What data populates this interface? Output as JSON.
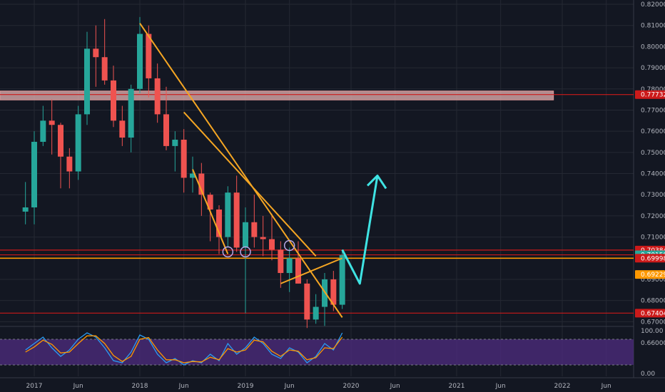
{
  "theme": {
    "background": "#131722",
    "grid": "#242833",
    "axis_text": "#b2b5be",
    "candle_up": "#26a69a",
    "candle_down": "#ef5350",
    "support_red": "#cc1a1a",
    "support_orange": "#ff9800",
    "trendline_orange": "#f5a623",
    "projection_cyan": "#3fe3e3",
    "zone_fill": "#e8b4b4",
    "ellipse": "#b7a7e6",
    "osc_band": "#4b2b7a",
    "osc_line_blue": "#2a9df4",
    "osc_line_orange": "#ff9800"
  },
  "chart_data": {
    "type": "candlestick",
    "ylim": [
      0.66,
      0.82
    ],
    "y_ticks": [
      "0.82000",
      "0.81000",
      "0.80000",
      "0.79000",
      "0.78000",
      "0.77000",
      "0.76000",
      "0.75000",
      "0.74000",
      "0.73000",
      "0.72000",
      "0.71000",
      "0.70000",
      "0.69000",
      "0.68000",
      "0.67000",
      "0.66000"
    ],
    "x_ticks": [
      "2017",
      "Jun",
      "2018",
      "Jun",
      "2019",
      "Jun",
      "2020",
      "Jun",
      "2021",
      "Jun",
      "2022",
      "Jun"
    ],
    "x_tick_dates": [
      "2017-01",
      "2017-06",
      "2018-01",
      "2018-06",
      "2019-01",
      "2019-06",
      "2020-01",
      "2020-06",
      "2021-01",
      "2021-06",
      "2022-01",
      "2022-06"
    ],
    "candles": [
      {
        "d": "2016-12",
        "o": 0.722,
        "h": 0.736,
        "l": 0.716,
        "c": 0.724
      },
      {
        "d": "2017-01",
        "o": 0.724,
        "h": 0.76,
        "l": 0.716,
        "c": 0.755
      },
      {
        "d": "2017-02",
        "o": 0.755,
        "h": 0.772,
        "l": 0.753,
        "c": 0.765
      },
      {
        "d": "2017-03",
        "o": 0.765,
        "h": 0.775,
        "l": 0.749,
        "c": 0.763
      },
      {
        "d": "2017-04",
        "o": 0.763,
        "h": 0.764,
        "l": 0.733,
        "c": 0.748
      },
      {
        "d": "2017-05",
        "o": 0.748,
        "h": 0.752,
        "l": 0.733,
        "c": 0.741
      },
      {
        "d": "2017-06",
        "o": 0.741,
        "h": 0.772,
        "l": 0.737,
        "c": 0.768
      },
      {
        "d": "2017-07",
        "o": 0.768,
        "h": 0.807,
        "l": 0.763,
        "c": 0.799
      },
      {
        "d": "2017-08",
        "o": 0.799,
        "h": 0.81,
        "l": 0.781,
        "c": 0.795
      },
      {
        "d": "2017-09",
        "o": 0.795,
        "h": 0.813,
        "l": 0.782,
        "c": 0.784
      },
      {
        "d": "2017-10",
        "o": 0.784,
        "h": 0.791,
        "l": 0.762,
        "c": 0.765
      },
      {
        "d": "2017-11",
        "o": 0.765,
        "h": 0.772,
        "l": 0.753,
        "c": 0.757
      },
      {
        "d": "2017-12",
        "o": 0.757,
        "h": 0.782,
        "l": 0.75,
        "c": 0.78
      },
      {
        "d": "2018-01",
        "o": 0.78,
        "h": 0.814,
        "l": 0.778,
        "c": 0.806
      },
      {
        "d": "2018-02",
        "o": 0.806,
        "h": 0.81,
        "l": 0.776,
        "c": 0.785
      },
      {
        "d": "2018-03",
        "o": 0.785,
        "h": 0.792,
        "l": 0.764,
        "c": 0.768
      },
      {
        "d": "2018-04",
        "o": 0.768,
        "h": 0.781,
        "l": 0.751,
        "c": 0.753
      },
      {
        "d": "2018-05",
        "o": 0.753,
        "h": 0.76,
        "l": 0.741,
        "c": 0.756
      },
      {
        "d": "2018-06",
        "o": 0.756,
        "h": 0.761,
        "l": 0.731,
        "c": 0.738
      },
      {
        "d": "2018-07",
        "o": 0.738,
        "h": 0.748,
        "l": 0.731,
        "c": 0.74
      },
      {
        "d": "2018-08",
        "o": 0.74,
        "h": 0.745,
        "l": 0.72,
        "c": 0.73
      },
      {
        "d": "2018-09",
        "o": 0.73,
        "h": 0.731,
        "l": 0.708,
        "c": 0.723
      },
      {
        "d": "2018-10",
        "o": 0.723,
        "h": 0.725,
        "l": 0.702,
        "c": 0.71
      },
      {
        "d": "2018-11",
        "o": 0.71,
        "h": 0.734,
        "l": 0.705,
        "c": 0.731
      },
      {
        "d": "2018-12",
        "o": 0.731,
        "h": 0.739,
        "l": 0.703,
        "c": 0.705
      },
      {
        "d": "2019-01",
        "o": 0.705,
        "h": 0.724,
        "l": 0.674,
        "c": 0.717
      },
      {
        "d": "2019-02",
        "o": 0.717,
        "h": 0.73,
        "l": 0.705,
        "c": 0.71
      },
      {
        "d": "2019-03",
        "o": 0.71,
        "h": 0.72,
        "l": 0.701,
        "c": 0.709
      },
      {
        "d": "2019-04",
        "o": 0.709,
        "h": 0.721,
        "l": 0.699,
        "c": 0.704
      },
      {
        "d": "2019-05",
        "o": 0.704,
        "h": 0.708,
        "l": 0.686,
        "c": 0.693
      },
      {
        "d": "2019-06",
        "o": 0.693,
        "h": 0.705,
        "l": 0.684,
        "c": 0.7
      },
      {
        "d": "2019-07",
        "o": 0.7,
        "h": 0.708,
        "l": 0.688,
        "c": 0.688
      },
      {
        "d": "2019-08",
        "o": 0.688,
        "h": 0.69,
        "l": 0.667,
        "c": 0.671
      },
      {
        "d": "2019-09",
        "o": 0.671,
        "h": 0.683,
        "l": 0.669,
        "c": 0.677
      },
      {
        "d": "2019-10",
        "o": 0.677,
        "h": 0.693,
        "l": 0.668,
        "c": 0.69
      },
      {
        "d": "2019-11",
        "o": 0.69,
        "h": 0.694,
        "l": 0.675,
        "c": 0.678
      },
      {
        "d": "2019-12",
        "o": 0.678,
        "h": 0.704,
        "l": 0.676,
        "c": 0.7015
      }
    ],
    "horizontal_levels": [
      {
        "price": 0.70384,
        "label": "0.70384",
        "color": "#cc1a1a",
        "badge": "#cc1a1a"
      },
      {
        "price": 0.70158,
        "label": "0.70158",
        "color": "#cc1a1a",
        "badge": "#26a69a"
      },
      {
        "price": 0.69998,
        "label": "0.69998",
        "color": "#ff9800",
        "badge": "#cc1a1a"
      },
      {
        "price": 0.69229,
        "label": "0.69229",
        "color": null,
        "badge": "#ff9800"
      },
      {
        "price": 0.67404,
        "label": "0.67404",
        "color": "#cc1a1a",
        "badge": "#cc1a1a"
      },
      {
        "price": 0.77732,
        "label": "0.77732",
        "color": "#cc1a1a",
        "badge": "#cc1a1a"
      }
    ],
    "zone": {
      "top": 0.779,
      "bottom": 0.7748,
      "end_date": "2021-12"
    },
    "trendlines": [
      {
        "name": "downtrend-main",
        "from": {
          "d": "2018-01",
          "p": 0.811
        },
        "to": {
          "d": "2019-12",
          "p": 0.672
        }
      },
      {
        "name": "downtrend-2",
        "from": {
          "d": "2018-06",
          "p": 0.769
        },
        "to": {
          "d": "2019-09",
          "p": 0.701
        }
      },
      {
        "name": "downtrend-3",
        "from": {
          "d": "2018-07",
          "p": 0.742
        },
        "to": {
          "d": "2018-11",
          "p": 0.702
        }
      },
      {
        "name": "uptrend-short",
        "from": {
          "d": "2019-05",
          "p": 0.688
        },
        "to": {
          "d": "2019-12",
          "p": 0.7
        }
      }
    ],
    "projection": [
      {
        "d": "2019-12",
        "p": 0.704
      },
      {
        "d": "2020-02",
        "p": 0.688
      },
      {
        "d": "2020-04",
        "p": 0.739
      }
    ],
    "ellipses": [
      {
        "d": "2018-11",
        "p": 0.703
      },
      {
        "d": "2019-01",
        "p": 0.703
      },
      {
        "d": "2019-06",
        "p": 0.706
      }
    ],
    "oscillator": {
      "ticks": [
        "100.00",
        "0.00"
      ],
      "band": [
        20,
        80
      ],
      "blue": [
        55,
        70,
        85,
        60,
        40,
        55,
        80,
        95,
        85,
        60,
        30,
        25,
        50,
        90,
        80,
        45,
        25,
        35,
        20,
        30,
        25,
        45,
        30,
        70,
        45,
        60,
        85,
        70,
        45,
        35,
        60,
        50,
        25,
        40,
        70,
        55,
        95
      ],
      "orange": [
        50,
        62,
        78,
        68,
        48,
        50,
        70,
        88,
        88,
        70,
        42,
        28,
        40,
        80,
        84,
        55,
        32,
        32,
        25,
        28,
        27,
        38,
        32,
        58,
        50,
        55,
        78,
        74,
        52,
        40,
        55,
        52,
        32,
        37,
        60,
        58,
        85
      ]
    }
  }
}
